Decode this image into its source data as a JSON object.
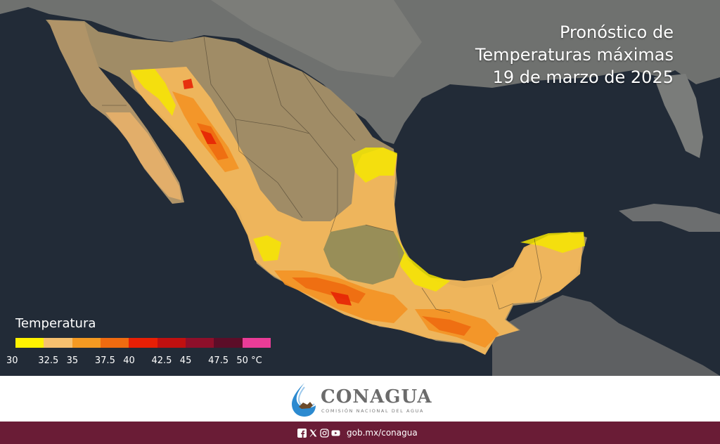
{
  "title": {
    "line1": "Pronóstico de",
    "line2": "Temperaturas máximas",
    "line3": "19 de marzo de 2025"
  },
  "legend": {
    "title": "Temperatura",
    "colors": [
      "#fff200",
      "#f7c16f",
      "#f59a22",
      "#f06b10",
      "#e81f05",
      "#c01010",
      "#8e0f2a",
      "#5c0d28",
      "#ea3c97"
    ],
    "ticks": [
      "30",
      "32.5",
      "35",
      "37.5",
      "40",
      "42.5",
      "45",
      "47.5",
      "50 °C"
    ]
  },
  "footer": {
    "logo_name": "CONAGUA",
    "logo_sub": "COMISIÓN NACIONAL DEL AGUA",
    "url": "gob.mx/conagua",
    "social_icons": [
      "facebook-icon",
      "x-icon",
      "instagram-icon",
      "youtube-icon"
    ]
  }
}
